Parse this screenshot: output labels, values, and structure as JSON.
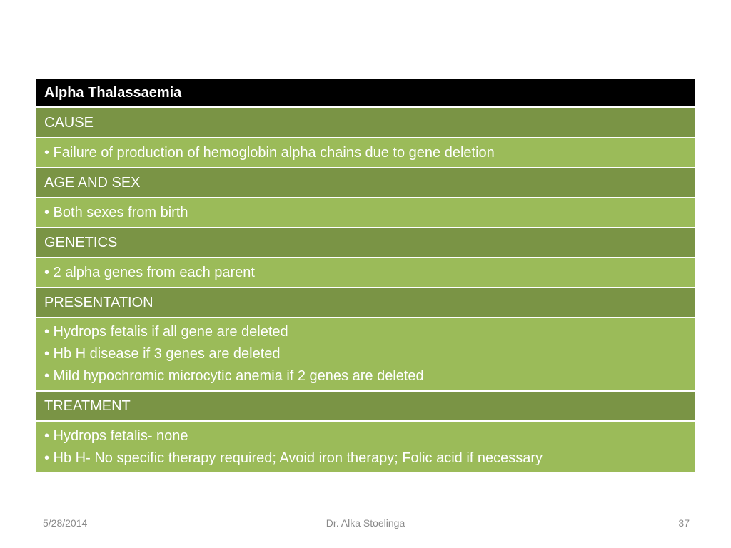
{
  "table": {
    "title": "Alpha Thalassaemia",
    "sections": [
      {
        "heading": "CAUSE",
        "bullets": [
          "• Failure of production of hemoglobin alpha chains due to gene deletion"
        ]
      },
      {
        "heading": "AGE AND SEX",
        "bullets": [
          "• Both sexes from birth"
        ]
      },
      {
        "heading": "GENETICS",
        "bullets": [
          "• 2 alpha genes from each parent"
        ]
      },
      {
        "heading": "PRESENTATION",
        "bullets": [
          "• Hydrops fetalis if all gene are deleted",
          "• Hb H disease if 3 genes are deleted",
          "• Mild hypochromic microcytic anemia if 2 genes are deleted"
        ]
      },
      {
        "heading": "TREATMENT",
        "bullets": [
          "• Hydrops fetalis- none",
          "• Hb H- No specific therapy required; Avoid iron therapy; Folic acid if necessary"
        ]
      }
    ]
  },
  "footer": {
    "date": "5/28/2014",
    "author": "Dr. Alka Stoelinga",
    "page_number": "37"
  },
  "colors": {
    "title_bg": "#000000",
    "section_bg": "#7a9445",
    "content_bg": "#9bbb59"
  }
}
